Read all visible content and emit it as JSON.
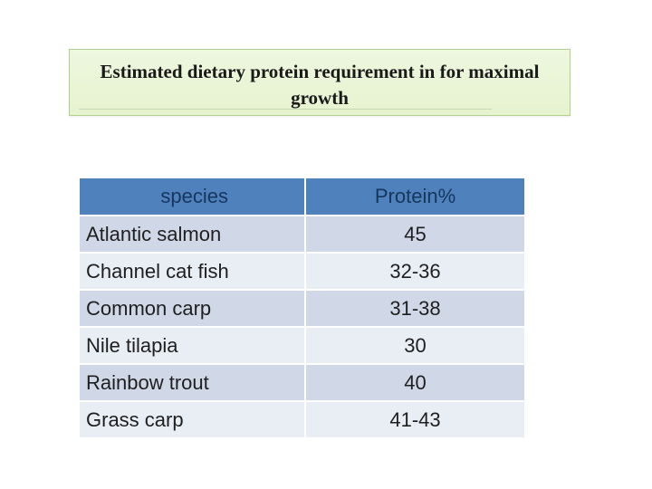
{
  "slide": {
    "title": "Estimated dietary protein requirement in for maximal growth"
  },
  "table": {
    "headers": [
      "species",
      "Protein%"
    ],
    "rows": [
      {
        "species": "Atlantic salmon",
        "protein": "45"
      },
      {
        "species": "Channel cat fish",
        "protein": "32-36"
      },
      {
        "species": "Common carp",
        "protein": "31-38"
      },
      {
        "species": "Nile tilapia",
        "protein": "30"
      },
      {
        "species": "Rainbow trout",
        "protein": "40"
      },
      {
        "species": "Grass carp",
        "protein": "41-43"
      }
    ]
  },
  "colors": {
    "header_bg": "#4f81bd",
    "row_bg": "#d0d8e8",
    "row_alt_bg": "#e9edf4",
    "title_box_bg": "#e6f3cf"
  }
}
